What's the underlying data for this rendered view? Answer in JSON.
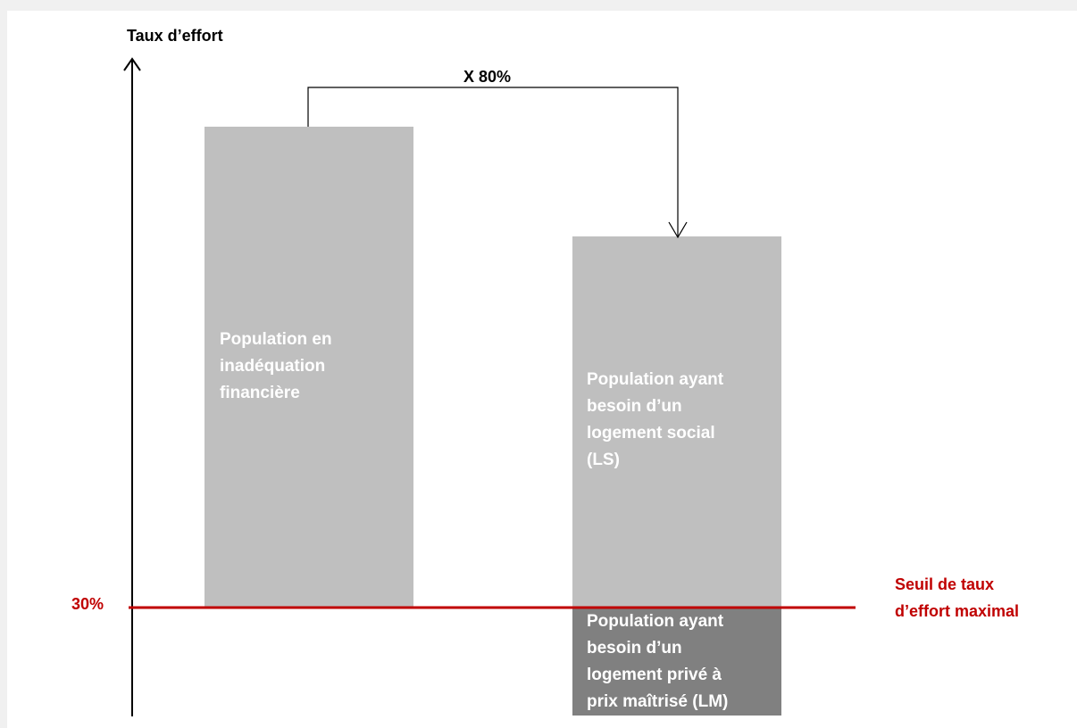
{
  "axis": {
    "title": "Taux d’effort"
  },
  "multiplier": {
    "label": "X 80%"
  },
  "threshold": {
    "value_label": "30%",
    "name": "Seuil de taux\nd’effort maximal",
    "color": "#c00000"
  },
  "bars": [
    {
      "label": "Population en\ninadéquation\nfinancière",
      "color": "#bfbfbf"
    },
    {
      "label": "Population ayant\nbesoin d’un\nlogement social\n(LS)",
      "color": "#bfbfbf"
    },
    {
      "label": "Population ayant\nbesoin d’un\nlogement privé à\nprix maîtrisé  (LM)",
      "color": "#808080"
    }
  ]
}
